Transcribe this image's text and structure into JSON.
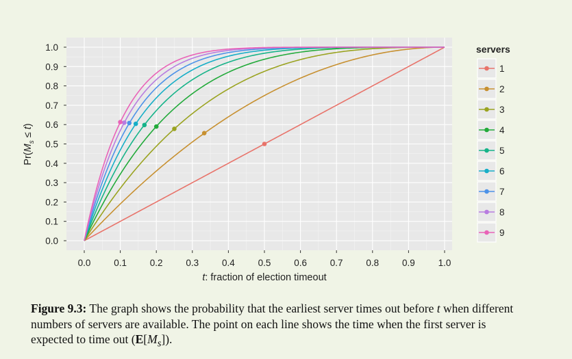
{
  "chart_data": {
    "type": "line",
    "title": "",
    "xlabel": "t: fraction of election timeout",
    "ylabel": "Pr(M_s ≤ t)",
    "xlim": [
      0,
      1
    ],
    "ylim": [
      0,
      1
    ],
    "x_ticks": [
      "0.0",
      "0.1",
      "0.2",
      "0.3",
      "0.4",
      "0.5",
      "0.6",
      "0.7",
      "0.8",
      "0.9",
      "1.0"
    ],
    "y_ticks": [
      "0.0",
      "0.1",
      "0.2",
      "0.3",
      "0.4",
      "0.5",
      "0.6",
      "0.7",
      "0.8",
      "0.9",
      "1.0"
    ],
    "grid": true,
    "legend_title": "servers",
    "legend_position": "right",
    "series": [
      {
        "name": "1",
        "color": "#e8736a",
        "servers": 1,
        "marker": {
          "x": 0.5,
          "y": 0.5
        }
      },
      {
        "name": "2",
        "color": "#c79030",
        "servers": 2,
        "marker": {
          "x": 0.333,
          "y": 0.556
        }
      },
      {
        "name": "3",
        "color": "#9aa320",
        "servers": 3,
        "marker": {
          "x": 0.25,
          "y": 0.578
        }
      },
      {
        "name": "4",
        "color": "#22aa3a",
        "servers": 4,
        "marker": {
          "x": 0.2,
          "y": 0.59
        }
      },
      {
        "name": "5",
        "color": "#16b389",
        "servers": 5,
        "marker": {
          "x": 0.167,
          "y": 0.598
        }
      },
      {
        "name": "6",
        "color": "#17aec7",
        "servers": 6,
        "marker": {
          "x": 0.143,
          "y": 0.604
        }
      },
      {
        "name": "7",
        "color": "#4d92e8",
        "servers": 7,
        "marker": {
          "x": 0.125,
          "y": 0.608
        }
      },
      {
        "name": "8",
        "color": "#b87ce0",
        "servers": 8,
        "marker": {
          "x": 0.111,
          "y": 0.61
        }
      },
      {
        "name": "9",
        "color": "#e963b8",
        "servers": 9,
        "marker": {
          "x": 0.1,
          "y": 0.613
        }
      }
    ]
  },
  "caption": {
    "label": "Figure 9.3:",
    "text": "The graph shows the probability that the earliest server times out before t when different numbers of servers are available. The point on each line shows the time when the first server is expected to time out (E[M_s])."
  }
}
